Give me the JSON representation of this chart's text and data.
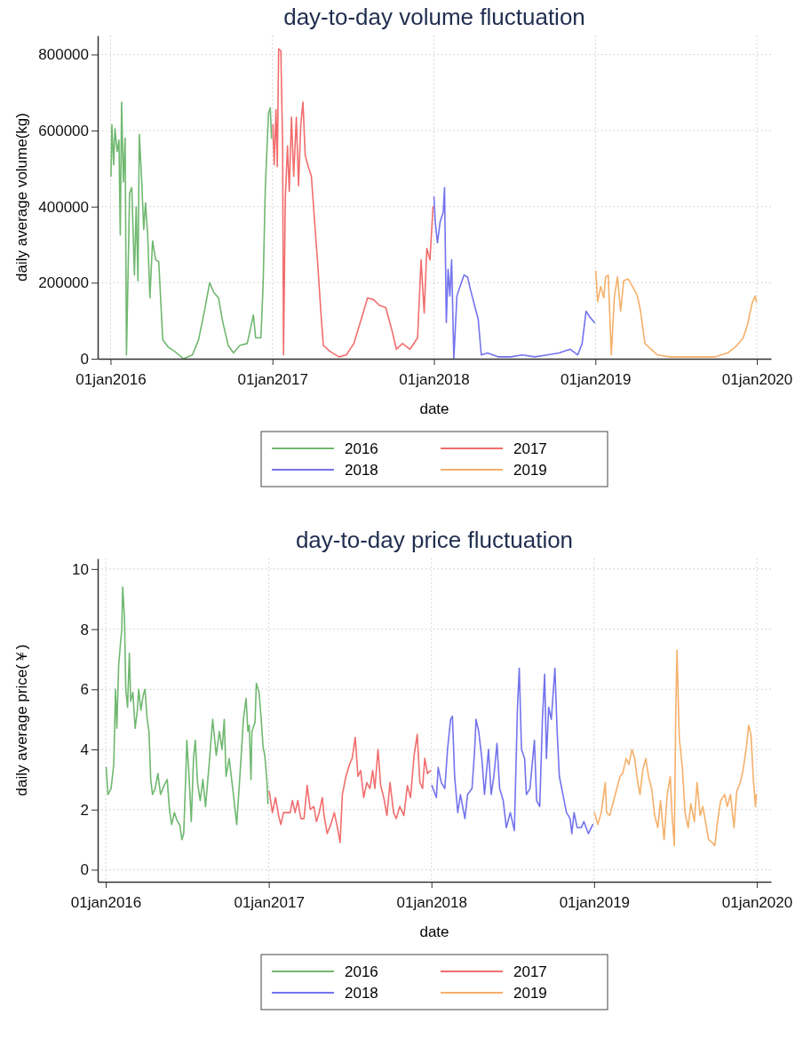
{
  "chart_data": [
    {
      "type": "line",
      "title": "day-to-day volume fluctuation",
      "xlabel": "date",
      "ylabel": "daily average volume(kg)",
      "xlim": [
        "2015-12-03",
        "2020-02-02"
      ],
      "ylim": [
        0,
        850000
      ],
      "xticks": [
        {
          "value": "2016-01-01",
          "label": "01jan2016"
        },
        {
          "value": "2017-01-01",
          "label": "01jan2017"
        },
        {
          "value": "2018-01-01",
          "label": "01jan2018"
        },
        {
          "value": "2019-01-01",
          "label": "01jan2019"
        },
        {
          "value": "2020-01-01",
          "label": "01jan2020"
        }
      ],
      "yticks": [
        0,
        200000,
        400000,
        600000,
        800000
      ],
      "grid": true,
      "legend": "bottom",
      "line_style": "solid",
      "series": [
        {
          "name": "2016",
          "color": "#70b870",
          "x": [
            "2016-01-02",
            "2016-01-04",
            "2016-01-08",
            "2016-01-11",
            "2016-01-16",
            "2016-01-20",
            "2016-01-23",
            "2016-01-26",
            "2016-01-30",
            "2016-02-03",
            "2016-02-06",
            "2016-02-10",
            "2016-02-13",
            "2016-02-18",
            "2016-02-24",
            "2016-02-28",
            "2016-03-03",
            "2016-03-06",
            "2016-03-11",
            "2016-03-16",
            "2016-03-20",
            "2016-03-25",
            "2016-03-30",
            "2016-04-05",
            "2016-04-12",
            "2016-04-19",
            "2016-04-28",
            "2016-05-11",
            "2016-05-24",
            "2016-06-14",
            "2016-07-04",
            "2016-07-18",
            "2016-08-01",
            "2016-08-12",
            "2016-08-21",
            "2016-09-01",
            "2016-09-11",
            "2016-09-23",
            "2016-10-05",
            "2016-10-19",
            "2016-11-05",
            "2016-11-19",
            "2016-11-24",
            "2016-12-06",
            "2016-12-11",
            "2016-12-16",
            "2016-12-23",
            "2016-12-27",
            "2016-12-30"
          ],
          "values": [
            480000,
            615000,
            510000,
            605000,
            545000,
            575000,
            325000,
            675000,
            465000,
            580000,
            10000,
            245000,
            435000,
            450000,
            220000,
            400000,
            205000,
            590000,
            480000,
            340000,
            410000,
            325000,
            160000,
            310000,
            260000,
            255000,
            50000,
            30000,
            20000,
            0,
            10000,
            50000,
            130000,
            200000,
            175000,
            160000,
            95000,
            35000,
            15000,
            35000,
            40000,
            115000,
            55000,
            55000,
            200000,
            455000,
            645000,
            660000,
            580000
          ]
        },
        {
          "name": "2017",
          "color": "#f26d6d",
          "x": [
            "2017-01-02",
            "2017-01-05",
            "2017-01-09",
            "2017-01-12",
            "2017-01-15",
            "2017-01-20",
            "2017-01-24",
            "2017-01-26",
            "2017-01-30",
            "2017-02-04",
            "2017-02-08",
            "2017-02-13",
            "2017-02-18",
            "2017-02-24",
            "2017-03-01",
            "2017-03-06",
            "2017-03-11",
            "2017-03-16",
            "2017-03-23",
            "2017-03-30",
            "2017-04-06",
            "2017-04-13",
            "2017-04-20",
            "2017-04-26",
            "2017-05-10",
            "2017-05-31",
            "2017-06-17",
            "2017-07-04",
            "2017-07-21",
            "2017-08-04",
            "2017-08-18",
            "2017-08-31",
            "2017-09-14",
            "2017-09-28",
            "2017-10-08",
            "2017-10-22",
            "2017-11-08",
            "2017-11-25",
            "2017-12-03",
            "2017-12-10",
            "2017-12-16",
            "2017-12-23",
            "2017-12-30"
          ],
          "values": [
            615000,
            510000,
            655000,
            505000,
            815000,
            810000,
            560000,
            10000,
            420000,
            560000,
            440000,
            635000,
            480000,
            635000,
            455000,
            615000,
            675000,
            535000,
            505000,
            480000,
            365000,
            255000,
            130000,
            35000,
            20000,
            5000,
            10000,
            40000,
            105000,
            160000,
            155000,
            140000,
            135000,
            75000,
            25000,
            40000,
            25000,
            55000,
            260000,
            120000,
            290000,
            260000,
            400000
          ]
        },
        {
          "name": "2018",
          "color": "#7373ee",
          "x": [
            "2018-01-01",
            "2018-01-04",
            "2018-01-09",
            "2018-01-15",
            "2018-01-22",
            "2018-01-25",
            "2018-01-29",
            "2018-02-02",
            "2018-02-06",
            "2018-02-10",
            "2018-02-15",
            "2018-02-22",
            "2018-03-01",
            "2018-03-10",
            "2018-03-18",
            "2018-03-25",
            "2018-04-04",
            "2018-04-11",
            "2018-04-18",
            "2018-05-02",
            "2018-05-26",
            "2018-06-23",
            "2018-07-20",
            "2018-08-17",
            "2018-09-14",
            "2018-10-11",
            "2018-11-05",
            "2018-11-22",
            "2018-12-02",
            "2018-12-11",
            "2018-12-19",
            "2018-12-30"
          ],
          "values": [
            425000,
            360000,
            305000,
            360000,
            385000,
            450000,
            95000,
            235000,
            165000,
            260000,
            0,
            165000,
            190000,
            220000,
            215000,
            180000,
            135000,
            105000,
            10000,
            15000,
            5000,
            5000,
            10000,
            5000,
            10000,
            15000,
            25000,
            10000,
            40000,
            125000,
            110000,
            95000
          ]
        },
        {
          "name": "2019",
          "color": "#f5b06a",
          "x": [
            "2019-01-02",
            "2019-01-06",
            "2019-01-13",
            "2019-01-20",
            "2019-01-24",
            "2019-01-30",
            "2019-02-06",
            "2019-02-13",
            "2019-02-20",
            "2019-02-27",
            "2019-03-06",
            "2019-03-16",
            "2019-03-26",
            "2019-04-06",
            "2019-04-13",
            "2019-04-23",
            "2019-05-07",
            "2019-05-21",
            "2019-06-18",
            "2019-07-22",
            "2019-08-26",
            "2019-09-29",
            "2019-10-27",
            "2019-11-17",
            "2019-12-01",
            "2019-12-11",
            "2019-12-21",
            "2019-12-28",
            "2019-12-31"
          ],
          "values": [
            230000,
            150000,
            190000,
            160000,
            215000,
            220000,
            10000,
            165000,
            215000,
            125000,
            205000,
            210000,
            190000,
            165000,
            125000,
            40000,
            25000,
            10000,
            5000,
            5000,
            5000,
            5000,
            15000,
            35000,
            55000,
            90000,
            145000,
            165000,
            150000
          ]
        }
      ]
    },
    {
      "type": "line",
      "title": "day-to-day price fluctuation",
      "xlabel": "date",
      "ylabel": "daily average price(￥)",
      "xlim": [
        "2015-12-14",
        "2020-02-02"
      ],
      "ylim": [
        -0.4,
        10.35
      ],
      "xticks": [
        {
          "value": "2016-01-01",
          "label": "01jan2016"
        },
        {
          "value": "2017-01-01",
          "label": "01jan2017"
        },
        {
          "value": "2018-01-01",
          "label": "01jan2018"
        },
        {
          "value": "2019-01-01",
          "label": "01jan2019"
        },
        {
          "value": "2020-01-01",
          "label": "01jan2020"
        }
      ],
      "yticks": [
        0,
        2,
        4,
        6,
        8,
        10
      ],
      "grid": true,
      "legend": "bottom",
      "line_style": "solid",
      "series": [
        {
          "name": "2016",
          "color": "#70b870",
          "x": [
            "2016-01-02",
            "2016-01-06",
            "2016-01-13",
            "2016-01-19",
            "2016-01-23",
            "2016-01-26",
            "2016-01-30",
            "2016-02-03",
            "2016-02-06",
            "2016-02-08",
            "2016-02-12",
            "2016-02-15",
            "2016-02-19",
            "2016-02-23",
            "2016-02-26",
            "2016-03-02",
            "2016-03-07",
            "2016-03-12",
            "2016-03-15",
            "2016-03-20",
            "2016-03-25",
            "2016-03-29",
            "2016-04-03",
            "2016-04-07",
            "2016-04-11",
            "2016-04-15",
            "2016-04-21",
            "2016-04-27",
            "2016-05-03",
            "2016-05-11",
            "2016-05-18",
            "2016-05-23",
            "2016-05-28",
            "2016-06-03",
            "2016-06-10",
            "2016-06-15",
            "2016-06-20",
            "2016-06-24",
            "2016-06-29",
            "2016-07-01",
            "2016-07-06",
            "2016-07-11",
            "2016-07-16",
            "2016-07-20",
            "2016-07-25",
            "2016-07-31",
            "2016-08-06",
            "2016-08-12",
            "2016-08-20",
            "2016-08-28",
            "2016-09-05",
            "2016-09-12",
            "2016-09-18",
            "2016-09-23",
            "2016-09-27",
            "2016-10-04",
            "2016-10-12",
            "2016-10-21",
            "2016-10-28",
            "2016-11-05",
            "2016-11-11",
            "2016-11-15",
            "2016-11-18",
            "2016-11-22",
            "2016-11-24",
            "2016-12-01",
            "2016-12-04",
            "2016-12-10",
            "2016-12-15",
            "2016-12-19",
            "2016-12-23",
            "2016-12-28",
            "2016-12-30"
          ],
          "values": [
            3.4,
            2.5,
            2.7,
            3.5,
            6.0,
            4.7,
            6.8,
            7.5,
            8.0,
            9.4,
            8.4,
            6.0,
            5.4,
            7.2,
            5.6,
            5.9,
            4.7,
            5.3,
            6.0,
            5.3,
            5.8,
            6.0,
            5.0,
            4.6,
            3.0,
            2.5,
            2.7,
            3.2,
            2.5,
            2.8,
            3.0,
            2.0,
            1.5,
            1.9,
            1.6,
            1.5,
            1.0,
            1.2,
            3.3,
            4.3,
            3.1,
            1.6,
            3.7,
            4.3,
            2.9,
            2.3,
            3.0,
            2.1,
            3.5,
            5.0,
            3.8,
            4.6,
            4.0,
            5.0,
            3.1,
            3.7,
            2.7,
            1.5,
            3.1,
            5.0,
            5.7,
            4.6,
            4.8,
            3.0,
            4.6,
            4.9,
            6.2,
            5.9,
            5.0,
            4.1,
            3.8,
            2.9,
            2.2
          ]
        },
        {
          "name": "2017",
          "color": "#f26d6d",
          "x": [
            "2017-01-02",
            "2017-01-09",
            "2017-01-16",
            "2017-01-23",
            "2017-01-28",
            "2017-02-03",
            "2017-02-11",
            "2017-02-18",
            "2017-02-23",
            "2017-03-01",
            "2017-03-07",
            "2017-03-14",
            "2017-03-21",
            "2017-03-28",
            "2017-04-04",
            "2017-04-12",
            "2017-04-18",
            "2017-04-24",
            "2017-05-01",
            "2017-05-05",
            "2017-05-12",
            "2017-05-20",
            "2017-05-28",
            "2017-06-04",
            "2017-06-10",
            "2017-06-15",
            "2017-06-23",
            "2017-07-01",
            "2017-07-07",
            "2017-07-14",
            "2017-07-20",
            "2017-07-26",
            "2017-08-02",
            "2017-08-09",
            "2017-08-16",
            "2017-08-22",
            "2017-08-27",
            "2017-09-03",
            "2017-09-09",
            "2017-09-16",
            "2017-09-23",
            "2017-09-30",
            "2017-10-08",
            "2017-10-14",
            "2017-10-22",
            "2017-10-31",
            "2017-11-08",
            "2017-11-15",
            "2017-11-23",
            "2017-11-30",
            "2017-12-06",
            "2017-12-12",
            "2017-12-17",
            "2017-12-23",
            "2017-12-30"
          ],
          "values": [
            2.6,
            1.9,
            2.4,
            1.8,
            1.5,
            1.9,
            1.9,
            1.9,
            2.3,
            1.9,
            2.3,
            1.7,
            1.7,
            2.8,
            2.0,
            2.1,
            1.6,
            1.9,
            2.4,
            1.8,
            1.2,
            1.5,
            1.9,
            1.4,
            0.9,
            2.5,
            3.1,
            3.5,
            3.7,
            4.4,
            3.1,
            3.3,
            2.4,
            2.9,
            2.7,
            3.3,
            2.7,
            4.0,
            2.8,
            2.4,
            1.8,
            2.9,
            1.9,
            1.7,
            2.1,
            1.8,
            2.8,
            2.4,
            3.8,
            4.5,
            2.9,
            2.7,
            3.7,
            3.2,
            3.3
          ]
        },
        {
          "name": "2018",
          "color": "#7373ee",
          "x": [
            "2018-01-02",
            "2018-01-12",
            "2018-01-16",
            "2018-01-23",
            "2018-01-31",
            "2018-02-06",
            "2018-02-13",
            "2018-02-17",
            "2018-02-22",
            "2018-03-01",
            "2018-03-07",
            "2018-03-17",
            "2018-03-23",
            "2018-04-02",
            "2018-04-08",
            "2018-04-11",
            "2018-04-17",
            "2018-04-24",
            "2018-04-30",
            "2018-05-09",
            "2018-05-15",
            "2018-05-21",
            "2018-05-28",
            "2018-06-03",
            "2018-06-11",
            "2018-06-18",
            "2018-06-27",
            "2018-07-06",
            "2018-07-13",
            "2018-07-17",
            "2018-07-22",
            "2018-07-29",
            "2018-08-02",
            "2018-08-10",
            "2018-08-20",
            "2018-08-25",
            "2018-09-01",
            "2018-09-07",
            "2018-09-12",
            "2018-09-16",
            "2018-09-21",
            "2018-09-27",
            "2018-10-05",
            "2018-10-10",
            "2018-10-15",
            "2018-10-23",
            "2018-10-31",
            "2018-11-08",
            "2018-11-12",
            "2018-11-17",
            "2018-11-24",
            "2018-12-03",
            "2018-12-09",
            "2018-12-19",
            "2018-12-29"
          ],
          "values": [
            2.8,
            2.4,
            3.4,
            2.9,
            2.7,
            4.0,
            5.0,
            5.1,
            3.1,
            1.9,
            2.5,
            1.7,
            2.5,
            2.7,
            4.0,
            5.0,
            4.6,
            3.7,
            2.5,
            4.0,
            2.5,
            3.1,
            4.2,
            2.7,
            2.3,
            1.4,
            1.9,
            1.3,
            5.4,
            6.7,
            4.0,
            3.7,
            2.5,
            2.7,
            4.3,
            2.3,
            2.1,
            5.0,
            6.5,
            3.7,
            5.4,
            5.0,
            6.7,
            4.6,
            3.1,
            2.5,
            1.9,
            1.7,
            1.2,
            1.9,
            1.4,
            1.4,
            1.6,
            1.2,
            1.5
          ]
        },
        {
          "name": "2019",
          "color": "#f5b06a",
          "x": [
            "2019-01-02",
            "2019-01-09",
            "2019-01-17",
            "2019-01-26",
            "2019-01-29",
            "2019-02-05",
            "2019-02-14",
            "2019-02-21",
            "2019-02-28",
            "2019-03-06",
            "2019-03-14",
            "2019-03-20",
            "2019-03-27",
            "2019-04-02",
            "2019-04-09",
            "2019-04-14",
            "2019-04-20",
            "2019-04-27",
            "2019-05-03",
            "2019-05-10",
            "2019-05-17",
            "2019-05-24",
            "2019-05-30",
            "2019-06-07",
            "2019-06-14",
            "2019-06-21",
            "2019-06-25",
            "2019-06-30",
            "2019-07-03",
            "2019-07-06",
            "2019-07-11",
            "2019-07-18",
            "2019-07-24",
            "2019-07-31",
            "2019-08-06",
            "2019-08-14",
            "2019-08-20",
            "2019-08-27",
            "2019-09-02",
            "2019-09-09",
            "2019-09-15",
            "2019-09-23",
            "2019-09-29",
            "2019-10-04",
            "2019-10-12",
            "2019-10-21",
            "2019-10-27",
            "2019-11-03",
            "2019-11-11",
            "2019-11-17",
            "2019-11-25",
            "2019-12-01",
            "2019-12-08",
            "2019-12-14",
            "2019-12-19",
            "2019-12-24",
            "2019-12-29",
            "2019-12-31"
          ],
          "values": [
            1.9,
            1.5,
            1.9,
            2.9,
            1.9,
            1.8,
            2.3,
            2.7,
            3.1,
            3.2,
            3.7,
            3.5,
            4.0,
            3.7,
            2.9,
            2.5,
            3.3,
            3.7,
            3.1,
            2.7,
            1.8,
            1.4,
            2.3,
            1.0,
            2.5,
            3.1,
            1.8,
            0.8,
            5.0,
            7.3,
            4.4,
            3.4,
            1.9,
            1.4,
            2.2,
            1.6,
            2.9,
            1.8,
            2.1,
            1.5,
            1.0,
            0.9,
            0.8,
            1.5,
            2.3,
            2.5,
            2.1,
            2.5,
            1.4,
            2.6,
            2.9,
            3.3,
            4.0,
            4.8,
            4.5,
            3.1,
            2.1,
            2.5
          ]
        }
      ]
    }
  ]
}
